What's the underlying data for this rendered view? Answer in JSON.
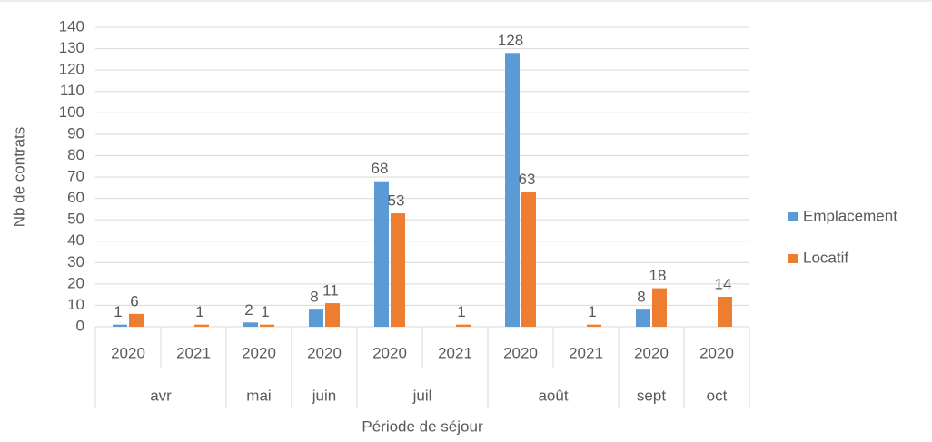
{
  "chart_data": {
    "type": "bar",
    "x_label": "Période de séjour",
    "y_label": "Nb de contrats",
    "groups": [
      {
        "name": "avr",
        "categories": [
          "2020",
          "2021"
        ]
      },
      {
        "name": "mai",
        "categories": [
          "2020"
        ]
      },
      {
        "name": "juin",
        "categories": [
          "2020"
        ]
      },
      {
        "name": "juil",
        "categories": [
          "2020",
          "2021"
        ]
      },
      {
        "name": "août",
        "categories": [
          "2020",
          "2021"
        ]
      },
      {
        "name": "sept",
        "categories": [
          "2020"
        ]
      },
      {
        "name": "oct",
        "categories": [
          "2020"
        ]
      }
    ],
    "series": [
      {
        "name": "Emplacement",
        "color": "#5b9bd5",
        "values": [
          1,
          null,
          2,
          8,
          68,
          null,
          128,
          null,
          8,
          null
        ]
      },
      {
        "name": "Locatif",
        "color": "#ed7d31",
        "values": [
          6,
          1,
          1,
          11,
          53,
          1,
          63,
          1,
          18,
          14
        ]
      }
    ],
    "ylim": [
      0,
      140
    ],
    "yticks": [
      0,
      10,
      20,
      30,
      40,
      50,
      60,
      70,
      80,
      90,
      100,
      110,
      120,
      130,
      140
    ],
    "grid": true,
    "legend": "right"
  }
}
